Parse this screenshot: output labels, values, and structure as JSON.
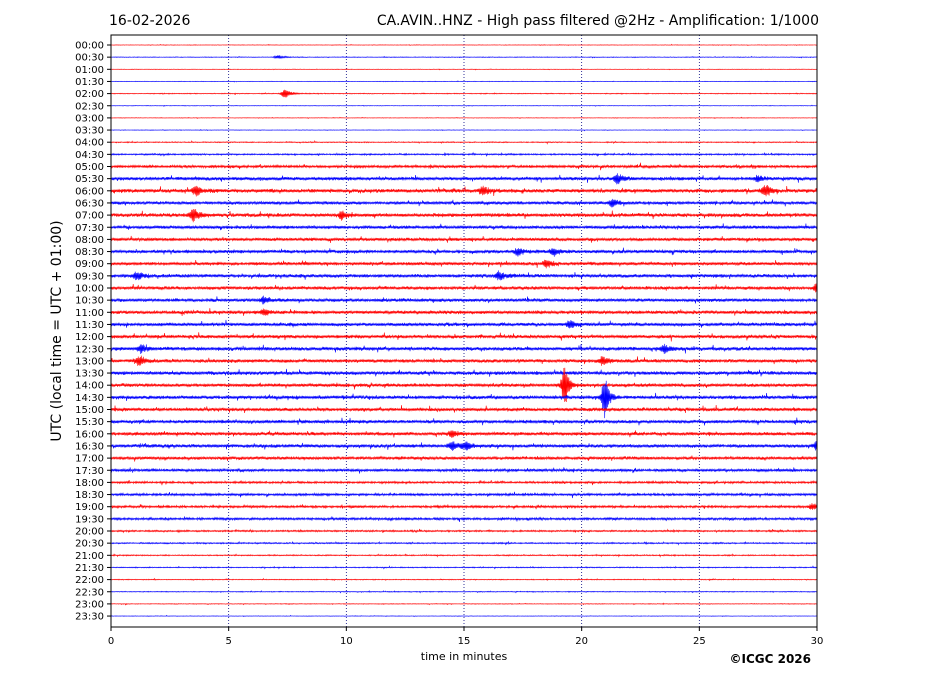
{
  "header": {
    "date": "16-02-2026",
    "title": "CA.AVIN..HNZ - High pass filtered @2Hz - Amplification: 1/1000"
  },
  "footer": {
    "copyright": "©ICGC 2026"
  },
  "colors": {
    "red_trace": "#ff0000",
    "blue_trace": "#0000ff",
    "grid": "#000080",
    "axes": "#000000"
  },
  "chart_data": {
    "type": "line",
    "xlabel": "time in minutes",
    "ylabel": "UTC (local time = UTC + 01:00)",
    "xlim": [
      0,
      30
    ],
    "x_ticks": [
      "0",
      "5",
      "10",
      "15",
      "20",
      "25",
      "30"
    ],
    "grid": "vertical dotted every 5 minutes",
    "rows": [
      "00:00",
      "00:30",
      "01:00",
      "01:30",
      "02:00",
      "02:30",
      "03:00",
      "03:30",
      "04:00",
      "04:30",
      "05:00",
      "05:30",
      "06:00",
      "06:30",
      "07:00",
      "07:30",
      "08:00",
      "08:30",
      "09:00",
      "09:30",
      "10:00",
      "10:30",
      "11:00",
      "11:30",
      "12:00",
      "12:30",
      "13:00",
      "13:30",
      "14:00",
      "14:30",
      "15:00",
      "15:30",
      "16:00",
      "16:30",
      "17:00",
      "17:30",
      "18:00",
      "18:30",
      "19:00",
      "19:30",
      "20:00",
      "20:30",
      "21:00",
      "21:30",
      "22:00",
      "22:30",
      "23:00",
      "23:30"
    ],
    "row_colors": "alternating red (on the hour) and blue (half past)",
    "noise_level": [
      0.3,
      0.4,
      0.3,
      0.3,
      0.5,
      0.3,
      0.3,
      0.3,
      0.6,
      0.9,
      1.6,
      2.0,
      2.2,
      1.8,
      2.2,
      1.9,
      1.9,
      2.0,
      1.9,
      2.0,
      1.9,
      1.9,
      2.0,
      2.0,
      2.0,
      2.1,
      2.0,
      2.1,
      2.0,
      2.1,
      2.0,
      2.0,
      2.0,
      2.0,
      1.8,
      1.6,
      1.2,
      1.4,
      1.4,
      1.4,
      1.0,
      0.8,
      0.7,
      0.6,
      0.5,
      0.5,
      0.4,
      0.3
    ],
    "events": [
      {
        "row": "00:30",
        "minute": 7.1,
        "amplitude": 2
      },
      {
        "row": "02:00",
        "minute": 7.4,
        "amplitude": 5
      },
      {
        "row": "05:30",
        "minute": 21.5,
        "amplitude": 5
      },
      {
        "row": "05:30",
        "minute": 27.5,
        "amplitude": 3
      },
      {
        "row": "06:00",
        "minute": 3.6,
        "amplitude": 5
      },
      {
        "row": "06:00",
        "minute": 15.8,
        "amplitude": 4
      },
      {
        "row": "06:00",
        "minute": 27.8,
        "amplitude": 6
      },
      {
        "row": "06:30",
        "minute": 21.3,
        "amplitude": 4
      },
      {
        "row": "07:00",
        "minute": 3.5,
        "amplitude": 7
      },
      {
        "row": "07:00",
        "minute": 9.8,
        "amplitude": 4
      },
      {
        "row": "08:30",
        "minute": 17.3,
        "amplitude": 4
      },
      {
        "row": "08:30",
        "minute": 18.8,
        "amplitude": 4
      },
      {
        "row": "09:00",
        "minute": 18.5,
        "amplitude": 4
      },
      {
        "row": "09:30",
        "minute": 1.1,
        "amplitude": 4
      },
      {
        "row": "09:30",
        "minute": 16.5,
        "amplitude": 4
      },
      {
        "row": "10:00",
        "minute": 30.0,
        "amplitude": 4
      },
      {
        "row": "10:30",
        "minute": 6.5,
        "amplitude": 4
      },
      {
        "row": "11:00",
        "minute": 6.5,
        "amplitude": 3
      },
      {
        "row": "11:30",
        "minute": 19.5,
        "amplitude": 4
      },
      {
        "row": "12:30",
        "minute": 1.3,
        "amplitude": 4
      },
      {
        "row": "12:30",
        "minute": 23.5,
        "amplitude": 4
      },
      {
        "row": "13:00",
        "minute": 1.2,
        "amplitude": 5
      },
      {
        "row": "13:00",
        "minute": 20.9,
        "amplitude": 4
      },
      {
        "row": "14:00",
        "minute": 19.3,
        "amplitude": 22
      },
      {
        "row": "14:30",
        "minute": 21.0,
        "amplitude": 22
      },
      {
        "row": "16:00",
        "minute": 14.5,
        "amplitude": 3
      },
      {
        "row": "16:30",
        "minute": 14.5,
        "amplitude": 5
      },
      {
        "row": "16:30",
        "minute": 15.1,
        "amplitude": 4
      },
      {
        "row": "16:30",
        "minute": 30.0,
        "amplitude": 4
      },
      {
        "row": "19:00",
        "minute": 29.8,
        "amplitude": 3
      }
    ]
  }
}
